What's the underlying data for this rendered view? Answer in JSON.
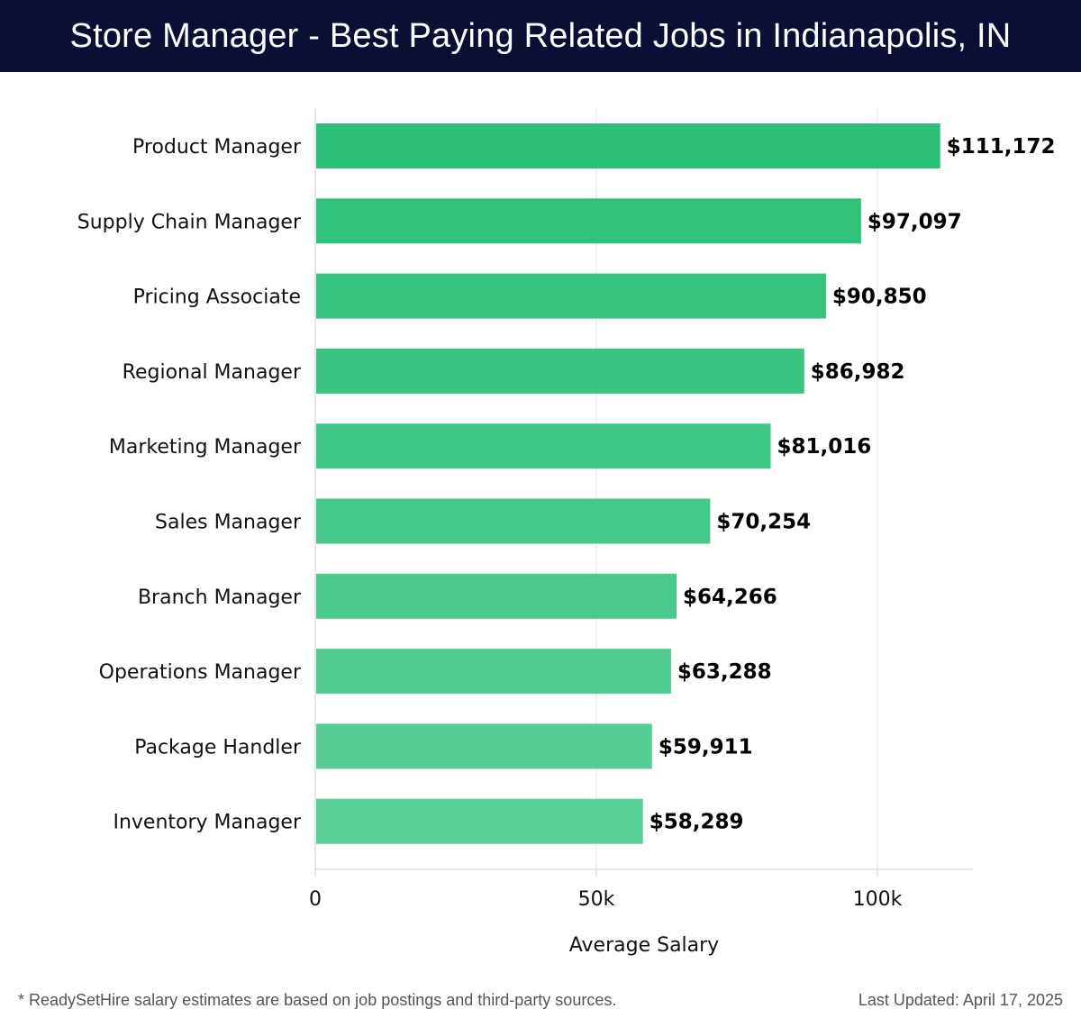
{
  "header": {
    "title": "Store Manager - Best Paying Related Jobs in Indianapolis, IN"
  },
  "chart_data": {
    "type": "bar",
    "orientation": "horizontal",
    "title": "Store Manager - Best Paying Related Jobs in Indianapolis, IN",
    "categories": [
      "Product Manager",
      "Supply Chain Manager",
      "Pricing Associate",
      "Regional Manager",
      "Marketing Manager",
      "Sales Manager",
      "Branch Manager",
      "Operations Manager",
      "Package Handler",
      "Inventory Manager"
    ],
    "values": [
      111172,
      97097,
      90850,
      86982,
      81016,
      70254,
      64266,
      63288,
      59911,
      58289
    ],
    "value_labels": [
      "$111,172",
      "$97,097",
      "$90,850",
      "$86,982",
      "$81,016",
      "$70,254",
      "$64,266",
      "$63,288",
      "$59,911",
      "$58,289"
    ],
    "xlabel": "Average Salary",
    "ylabel": "",
    "xlim": [
      0,
      117000
    ],
    "xticks": [
      0,
      50000,
      100000
    ],
    "xtick_labels": [
      "0",
      "50k",
      "100k"
    ],
    "grid": true,
    "bar_color_start": "#2bbf77",
    "bar_color_end": "#5bcf98"
  },
  "footer": {
    "note": "* ReadySetHire salary estimates are based on job postings and third-party sources.",
    "updated": "Last Updated: April 17, 2025"
  }
}
